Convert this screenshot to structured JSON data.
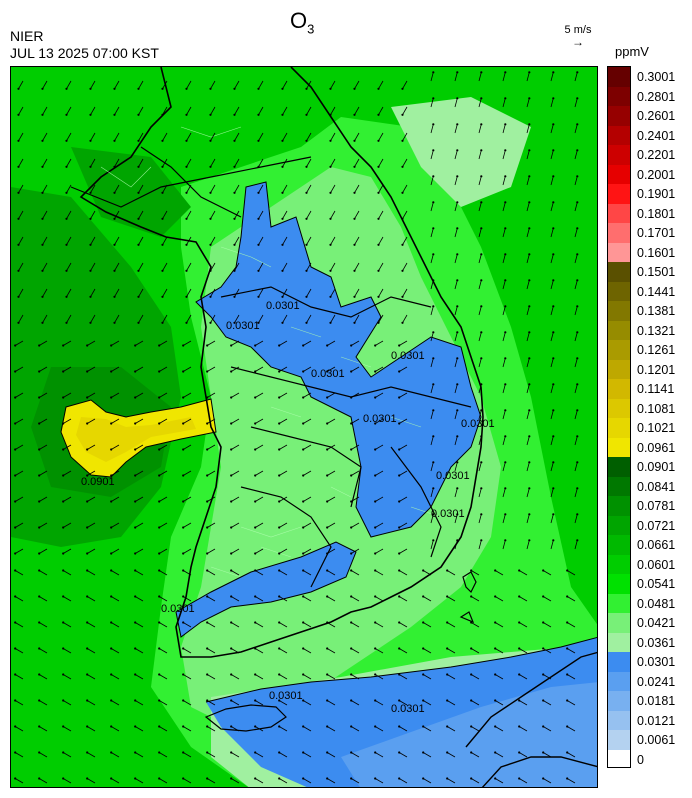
{
  "title": {
    "main": "O",
    "sub": "3"
  },
  "source": "NIER",
  "timestamp": "JUL 13 2025 07:00 KST",
  "wind_scale": {
    "label": "5 m/s",
    "arrow": "→"
  },
  "colorbar": {
    "unit": "ppmV",
    "labels": [
      "0.3001",
      "0.2801",
      "0.2601",
      "0.2401",
      "0.2201",
      "0.2001",
      "0.1901",
      "0.1801",
      "0.1701",
      "0.1601",
      "0.1501",
      "0.1441",
      "0.1381",
      "0.1321",
      "0.1261",
      "0.1201",
      "0.1141",
      "0.1081",
      "0.1021",
      "0.0961",
      "0.0901",
      "0.0841",
      "0.0781",
      "0.0721",
      "0.0661",
      "0.0601",
      "0.0541",
      "0.0481",
      "0.0421",
      "0.0361",
      "0.0301",
      "0.0241",
      "0.0181",
      "0.0121",
      "0.0061",
      "0"
    ],
    "colors": [
      "#650000",
      "#7d0000",
      "#960000",
      "#b40000",
      "#cd0000",
      "#e60000",
      "#ff1414",
      "#ff4646",
      "#ff6e6e",
      "#ff9696",
      "#5a5000",
      "#6e6400",
      "#827800",
      "#968c00",
      "#aa9b00",
      "#bea800",
      "#d2b800",
      "#dcc800",
      "#e6d700",
      "#f0e600",
      "#005f00",
      "#007800",
      "#009100",
      "#00a500",
      "#00b900",
      "#00cd00",
      "#00e100",
      "#32f032",
      "#78f078",
      "#a0f0a0",
      "#3c8cf0",
      "#5a9ff0",
      "#78b0f0",
      "#96c1f0",
      "#b4d2f0"
    ]
  },
  "contour_labels": [
    "0.0301",
    "0.0301",
    "0.0301",
    "0.0301",
    "0.0301",
    "0.0301",
    "0.0301",
    "0.0301",
    "0.0301",
    "0.0301",
    "0.0301",
    "0.0901"
  ]
}
